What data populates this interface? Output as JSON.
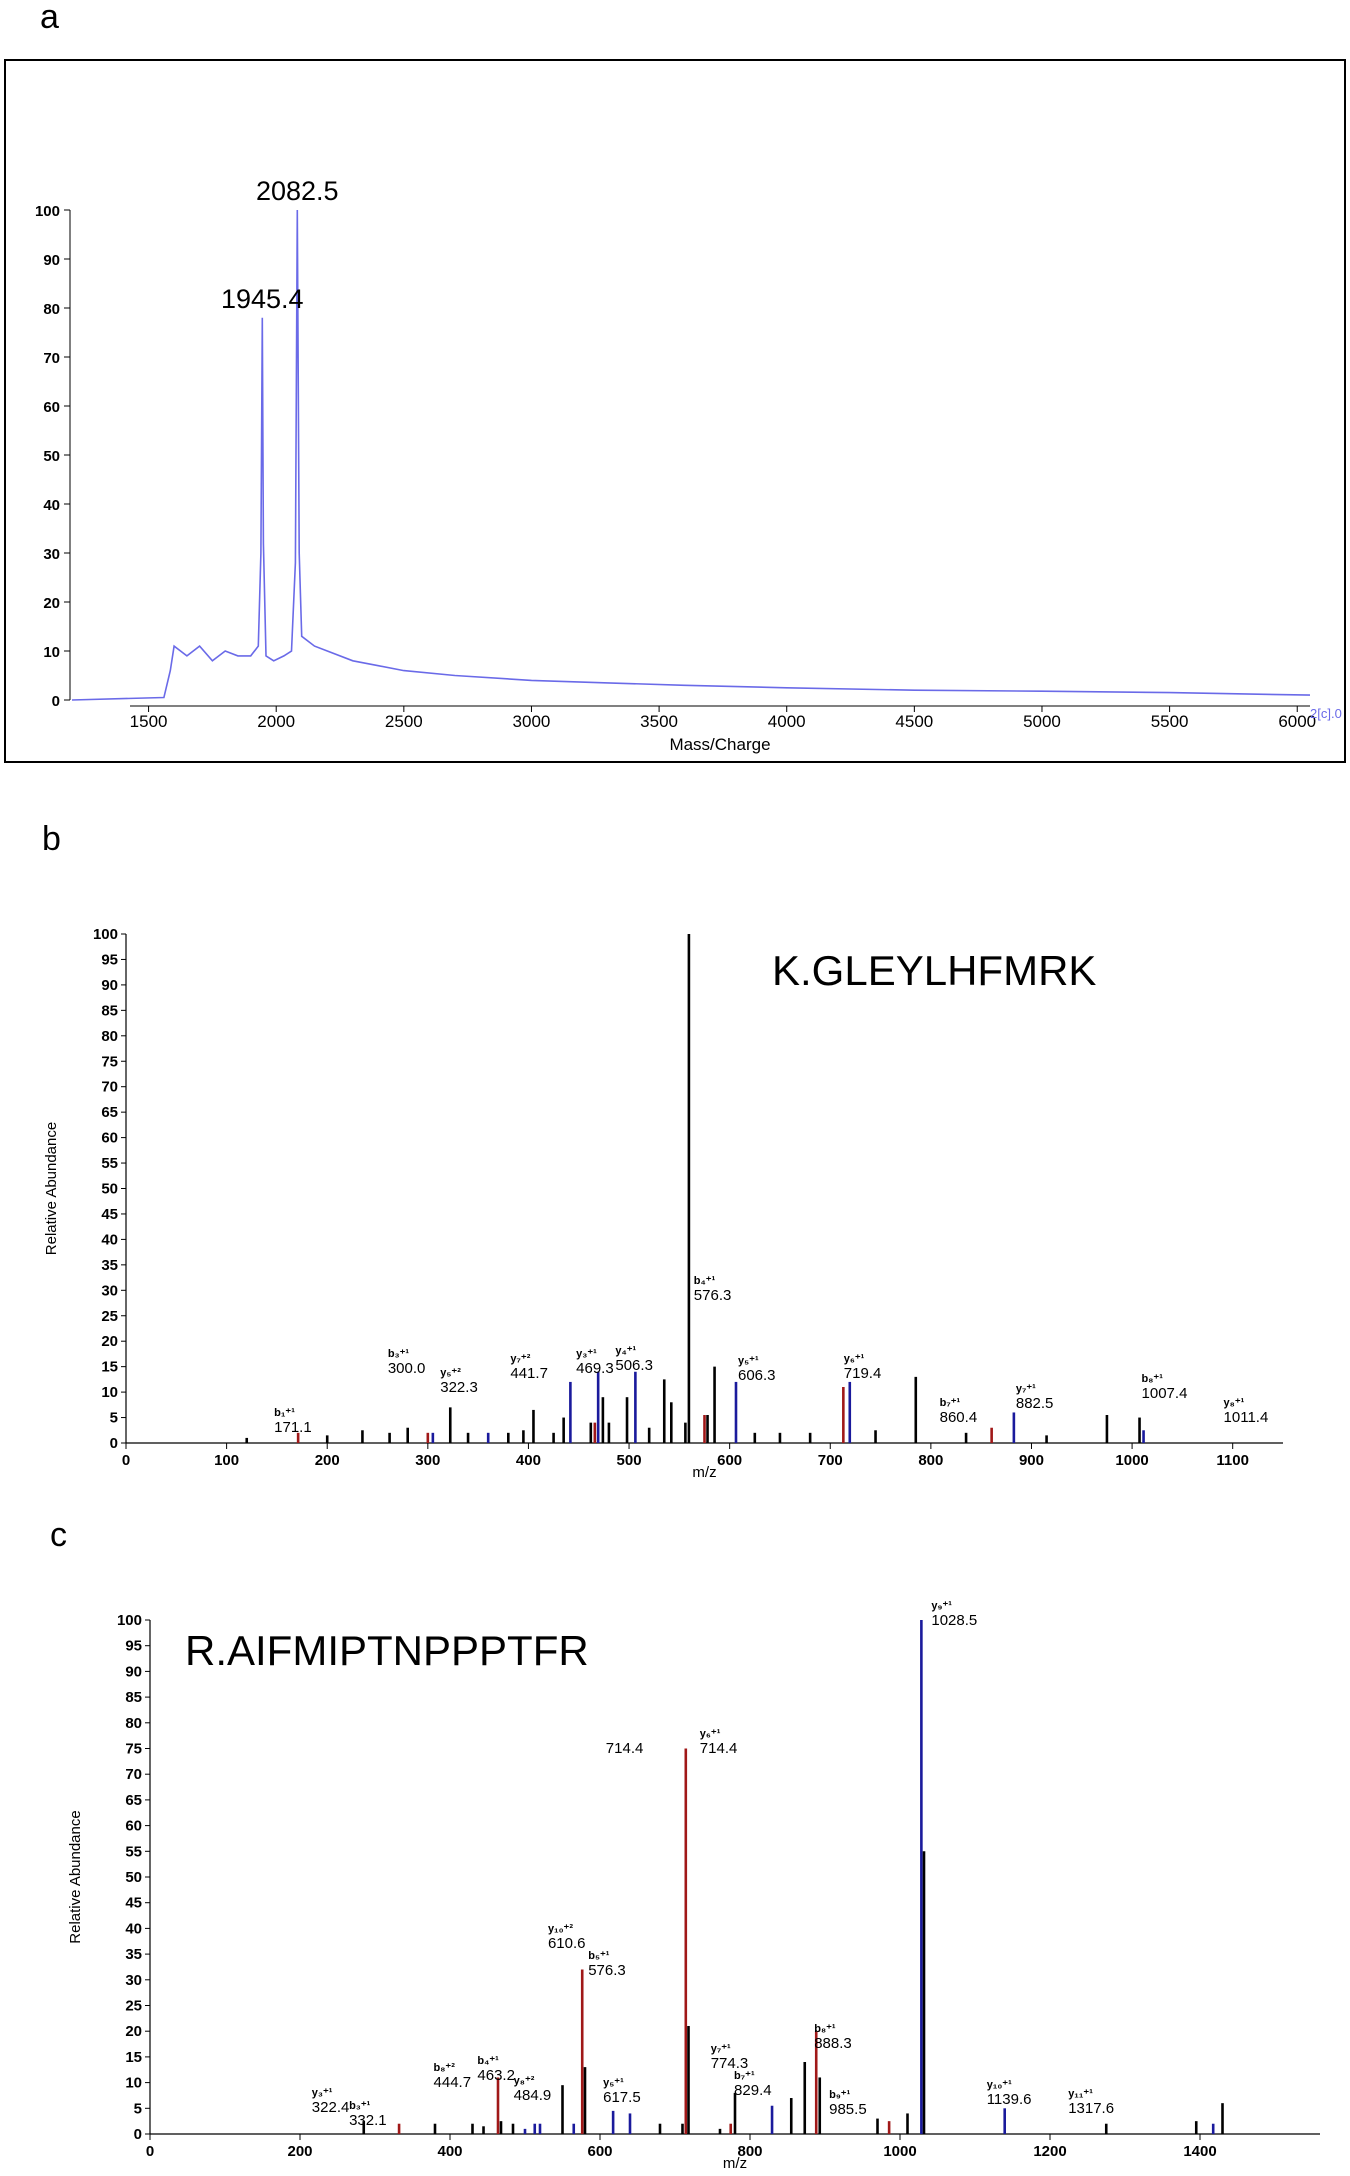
{
  "panels": [
    {
      "label": "a",
      "chart_data": {
        "type": "line",
        "xlabel": "Mass/Charge",
        "ylabel": "",
        "xlim": [
          1200,
          6050
        ],
        "ylim": [
          0,
          100
        ],
        "x_ticks": [
          1500,
          2000,
          2500,
          3000,
          3500,
          4000,
          4500,
          5000,
          5500,
          6000
        ],
        "y_ticks": [
          0,
          10,
          20,
          30,
          40,
          50,
          60,
          70,
          80,
          90,
          100
        ],
        "corner_text": "2[c].0",
        "line_color": "#6a6ae8",
        "peak_labels": [
          {
            "x": 1945.4,
            "y": 78,
            "text": "1945.4"
          },
          {
            "x": 2082.5,
            "y": 100,
            "text": "2082.5"
          }
        ],
        "series": [
          {
            "x": [
              1200,
              1560,
              1585,
              1600,
              1650,
              1700,
              1750,
              1800,
              1850,
              1900,
              1930,
              1940,
              1945.4,
              1950,
              1960,
              1990,
              2030,
              2060,
              2075,
              2082.5,
              2090,
              2100,
              2150,
              2200,
              2300,
              2400,
              2500,
              2700,
              3000,
              3300,
              3600,
              4000,
              4500,
              5000,
              5500,
              6050
            ],
            "y": [
              0,
              0.5,
              6,
              11,
              9,
              11,
              8,
              10,
              9,
              9,
              11,
              30,
              78,
              32,
              9,
              8,
              9,
              10,
              28,
              100,
              30,
              13,
              11,
              10,
              8,
              7,
              6,
              5,
              4,
              3.5,
              3,
              2.5,
              2,
              1.8,
              1.5,
              1
            ]
          }
        ]
      }
    },
    {
      "label": "b",
      "sequence": "K.GLEYLHFMRK",
      "chart_data": {
        "type": "bar",
        "xlabel": "m/z",
        "ylabel": "Relative Abundance",
        "xlim": [
          0,
          1150
        ],
        "ylim": [
          0,
          100
        ],
        "x_ticks": [
          0,
          100,
          200,
          300,
          400,
          500,
          600,
          700,
          800,
          900,
          1000,
          1100
        ],
        "y_ticks": [
          0,
          5,
          10,
          15,
          20,
          25,
          30,
          35,
          40,
          45,
          50,
          55,
          60,
          65,
          70,
          75,
          80,
          85,
          90,
          95,
          100
        ],
        "peaks": [
          {
            "x": 120,
            "y": 1,
            "c": "k"
          },
          {
            "x": 171.1,
            "y": 2,
            "c": "r"
          },
          {
            "x": 200,
            "y": 1.5,
            "c": "k"
          },
          {
            "x": 235,
            "y": 2.5,
            "c": "k"
          },
          {
            "x": 262,
            "y": 2,
            "c": "k"
          },
          {
            "x": 280,
            "y": 3,
            "c": "k"
          },
          {
            "x": 300,
            "y": 2,
            "c": "r"
          },
          {
            "x": 305,
            "y": 2,
            "c": "b"
          },
          {
            "x": 322.3,
            "y": 7,
            "c": "k"
          },
          {
            "x": 340,
            "y": 2,
            "c": "k"
          },
          {
            "x": 360,
            "y": 2,
            "c": "b"
          },
          {
            "x": 380,
            "y": 2,
            "c": "k"
          },
          {
            "x": 395,
            "y": 2.5,
            "c": "k"
          },
          {
            "x": 405,
            "y": 6.5,
            "c": "k"
          },
          {
            "x": 425,
            "y": 2,
            "c": "k"
          },
          {
            "x": 435,
            "y": 5,
            "c": "k"
          },
          {
            "x": 441.7,
            "y": 12,
            "c": "b"
          },
          {
            "x": 462,
            "y": 4,
            "c": "k"
          },
          {
            "x": 466,
            "y": 4,
            "c": "r"
          },
          {
            "x": 469.3,
            "y": 14,
            "c": "b"
          },
          {
            "x": 474,
            "y": 9,
            "c": "k"
          },
          {
            "x": 480,
            "y": 4,
            "c": "k"
          },
          {
            "x": 498,
            "y": 9,
            "c": "k"
          },
          {
            "x": 506.3,
            "y": 14,
            "c": "b"
          },
          {
            "x": 520,
            "y": 3,
            "c": "k"
          },
          {
            "x": 535,
            "y": 12.5,
            "c": "k"
          },
          {
            "x": 542,
            "y": 8,
            "c": "k"
          },
          {
            "x": 556,
            "y": 4,
            "c": "k"
          },
          {
            "x": 559.5,
            "y": 100,
            "c": "k"
          },
          {
            "x": 575,
            "y": 5.5,
            "c": "r"
          },
          {
            "x": 578,
            "y": 5.5,
            "c": "k"
          },
          {
            "x": 585,
            "y": 15,
            "c": "k"
          },
          {
            "x": 606.3,
            "y": 12,
            "c": "b"
          },
          {
            "x": 625,
            "y": 2,
            "c": "k"
          },
          {
            "x": 650,
            "y": 2,
            "c": "k"
          },
          {
            "x": 680,
            "y": 2,
            "c": "k"
          },
          {
            "x": 713,
            "y": 11,
            "c": "r"
          },
          {
            "x": 719.4,
            "y": 12,
            "c": "b"
          },
          {
            "x": 745,
            "y": 2.5,
            "c": "k"
          },
          {
            "x": 785,
            "y": 13,
            "c": "k"
          },
          {
            "x": 835,
            "y": 2,
            "c": "k"
          },
          {
            "x": 860.4,
            "y": 3,
            "c": "r"
          },
          {
            "x": 882.5,
            "y": 6,
            "c": "b"
          },
          {
            "x": 915,
            "y": 1.5,
            "c": "k"
          },
          {
            "x": 975,
            "y": 5.5,
            "c": "k"
          },
          {
            "x": 1007.4,
            "y": 5,
            "c": "k"
          },
          {
            "x": 1011.4,
            "y": 2.5,
            "c": "b"
          }
        ],
        "annotations": [
          {
            "text": "171.1",
            "x": 171.1,
            "lab": "b₁⁺¹"
          },
          {
            "text": "300.0",
            "x": 300.0,
            "lab": "b₃⁺¹"
          },
          {
            "text": "322.3",
            "x": 322.3,
            "lab": "y₅⁺²"
          },
          {
            "text": "441.7",
            "x": 441.7,
            "lab": "y₇⁺²"
          },
          {
            "text": "469.3",
            "x": 469.3,
            "lab": "y₃⁺¹"
          },
          {
            "text": "506.3",
            "x": 506.3,
            "lab": "y₄⁺¹"
          },
          {
            "text": "576.3",
            "x": 576.3,
            "lab": "b₄⁺¹"
          },
          {
            "text": "606.3",
            "x": 606.3,
            "lab": "y₅⁺¹"
          },
          {
            "text": "719.4",
            "x": 719.4,
            "lab": "y₆⁺¹"
          },
          {
            "text": "860.4",
            "x": 860.4,
            "lab": "b₇⁺¹"
          },
          {
            "text": "882.5",
            "x": 882.5,
            "lab": "y₇⁺¹"
          },
          {
            "text": "1007.4",
            "x": 1007.4,
            "lab": "b₈⁺¹"
          },
          {
            "text": "1011.4",
            "x": 1011.4,
            "lab": "y₈⁺¹"
          }
        ]
      }
    },
    {
      "label": "c",
      "sequence": "R.AIFMIPTNPPPTFR",
      "chart_data": {
        "type": "bar",
        "xlabel": "m/z",
        "ylabel": "Relative Abundance",
        "xlim": [
          0,
          1560
        ],
        "ylim": [
          0,
          100
        ],
        "x_ticks": [
          0,
          200,
          400,
          600,
          800,
          1000,
          1200,
          1400
        ],
        "y_ticks": [
          0,
          5,
          10,
          15,
          20,
          25,
          30,
          35,
          40,
          45,
          50,
          55,
          60,
          65,
          70,
          75,
          80,
          85,
          90,
          95,
          100
        ],
        "peaks": [
          {
            "x": 285,
            "y": 2.5,
            "c": "k"
          },
          {
            "x": 332.1,
            "y": 2,
            "c": "r"
          },
          {
            "x": 380,
            "y": 2,
            "c": "k"
          },
          {
            "x": 430,
            "y": 2,
            "c": "k"
          },
          {
            "x": 444.7,
            "y": 1.5,
            "c": "k"
          },
          {
            "x": 464,
            "y": 11,
            "c": "r"
          },
          {
            "x": 468,
            "y": 2.5,
            "c": "k"
          },
          {
            "x": 484,
            "y": 2,
            "c": "k"
          },
          {
            "x": 500,
            "y": 1,
            "c": "b"
          },
          {
            "x": 513,
            "y": 2,
            "c": "b"
          },
          {
            "x": 520,
            "y": 2,
            "c": "b"
          },
          {
            "x": 550,
            "y": 9.5,
            "c": "k"
          },
          {
            "x": 565,
            "y": 2,
            "c": "b"
          },
          {
            "x": 576.3,
            "y": 32,
            "c": "r"
          },
          {
            "x": 580,
            "y": 13,
            "c": "k"
          },
          {
            "x": 617.5,
            "y": 4.5,
            "c": "b"
          },
          {
            "x": 640,
            "y": 4,
            "c": "b"
          },
          {
            "x": 680,
            "y": 2,
            "c": "k"
          },
          {
            "x": 710,
            "y": 2,
            "c": "k"
          },
          {
            "x": 714.4,
            "y": 75,
            "c": "r"
          },
          {
            "x": 718,
            "y": 21,
            "c": "k"
          },
          {
            "x": 760,
            "y": 1,
            "c": "k"
          },
          {
            "x": 774.3,
            "y": 2,
            "c": "r"
          },
          {
            "x": 780,
            "y": 8,
            "c": "k"
          },
          {
            "x": 829.4,
            "y": 5.5,
            "c": "b"
          },
          {
            "x": 855,
            "y": 7,
            "c": "k"
          },
          {
            "x": 873,
            "y": 14,
            "c": "k"
          },
          {
            "x": 888.3,
            "y": 20,
            "c": "r"
          },
          {
            "x": 893,
            "y": 11,
            "c": "k"
          },
          {
            "x": 970,
            "y": 3,
            "c": "k"
          },
          {
            "x": 985.5,
            "y": 2.5,
            "c": "r"
          },
          {
            "x": 1010,
            "y": 4,
            "c": "k"
          },
          {
            "x": 1028.5,
            "y": 100,
            "c": "b"
          },
          {
            "x": 1032,
            "y": 55,
            "c": "k"
          },
          {
            "x": 1139.6,
            "y": 5,
            "c": "b"
          },
          {
            "x": 1275,
            "y": 2,
            "c": "k"
          },
          {
            "x": 1395,
            "y": 2.5,
            "c": "k"
          },
          {
            "x": 1417.6,
            "y": 2,
            "c": "b"
          },
          {
            "x": 1430,
            "y": 6,
            "c": "k"
          }
        ],
        "annotations": [
          {
            "text": "322.4",
            "x": 322.4,
            "lab": "y₃⁺¹"
          },
          {
            "text": "332.1",
            "x": 332.1,
            "lab": "b₃⁺¹"
          },
          {
            "text": "444.7",
            "x": 444.7,
            "lab": "b₈⁺²"
          },
          {
            "text": "463.2",
            "x": 463.2,
            "lab": "b₄⁺¹"
          },
          {
            "text": "484.9",
            "x": 484.9,
            "lab": "y₈⁺²"
          },
          {
            "text": "610.6",
            "x": 610.6,
            "lab": "y₁₀⁺²"
          },
          {
            "text": "576.3",
            "x": 576.3,
            "lab": "b₅⁺¹"
          },
          {
            "text": "617.5",
            "x": 617.5,
            "lab": "y₅⁺¹"
          },
          {
            "text": "714.4",
            "x": 714.4,
            "lab": ""
          },
          {
            "text": "714.4",
            "x": 714.4,
            "lab": "y₆⁺¹"
          },
          {
            "text": "774.3",
            "x": 774.3,
            "lab": "y₇⁺¹"
          },
          {
            "text": "829.4",
            "x": 829.4,
            "lab": "b₇⁺¹"
          },
          {
            "text": "888.3",
            "x": 888.3,
            "lab": "b₈⁺¹"
          },
          {
            "text": "985.5",
            "x": 985.5,
            "lab": "b₉⁺¹"
          },
          {
            "text": "1028.5",
            "x": 1028.5,
            "lab": "y₉⁺¹"
          },
          {
            "text": "1139.6",
            "x": 1139.6,
            "lab": "y₁₀⁺¹"
          },
          {
            "text": "1317.6",
            "x": 1317.6,
            "lab": "y₁₁⁺¹"
          }
        ]
      }
    }
  ]
}
